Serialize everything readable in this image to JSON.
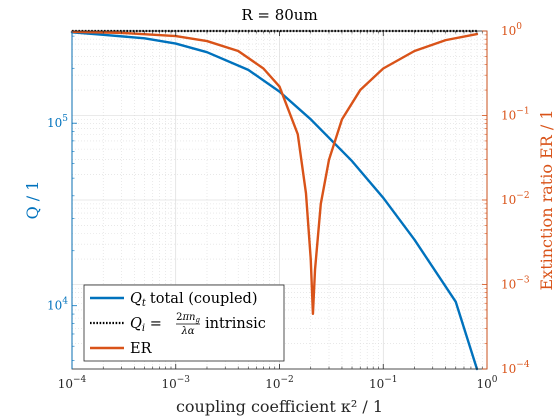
{
  "chart_data": {
    "type": "line",
    "title": "R = 80um",
    "xlabel": "coupling coefficient κ² / 1",
    "ylabel_left": "Q / 1",
    "ylabel_right": "Extinction ratio ER / 1",
    "x_scale": "log",
    "y_left_scale": "log",
    "y_right_scale": "log",
    "xlim": [
      0.0001,
      1
    ],
    "ylim_left": [
      4500,
      320000
    ],
    "ylim_right": [
      0.0001,
      1
    ],
    "x_ticks": [
      {
        "value": 0.0001,
        "base": "10",
        "exp": "−4"
      },
      {
        "value": 0.001,
        "base": "10",
        "exp": "−3"
      },
      {
        "value": 0.01,
        "base": "10",
        "exp": "−2"
      },
      {
        "value": 0.1,
        "base": "10",
        "exp": "−1"
      },
      {
        "value": 1,
        "base": "10",
        "exp": "0"
      }
    ],
    "y_left_ticks": [
      {
        "value": 10000,
        "base": "10",
        "exp": "4"
      },
      {
        "value": 100000,
        "base": "10",
        "exp": "5"
      }
    ],
    "y_right_ticks": [
      {
        "value": 0.0001,
        "base": "10",
        "exp": "−4"
      },
      {
        "value": 0.001,
        "base": "10",
        "exp": "−3"
      },
      {
        "value": 0.01,
        "base": "10",
        "exp": "−2"
      },
      {
        "value": 0.1,
        "base": "10",
        "exp": "−1"
      },
      {
        "value": 1,
        "base": "10",
        "exp": "0"
      }
    ],
    "grid": true,
    "legend_position": "bottom-left",
    "colors": {
      "left_axis": "#0072BD",
      "right_axis": "#D95319",
      "axes": "#262626"
    },
    "series": [
      {
        "name": "Q_t total (coupled)",
        "legend_text": "total (coupled)",
        "axis": "left",
        "color": "#0072BD",
        "style": "solid",
        "x": [
          0.0001,
          0.0002,
          0.0005,
          0.001,
          0.002,
          0.005,
          0.01,
          0.02,
          0.05,
          0.1,
          0.2,
          0.5,
          0.8
        ],
        "y": [
          315000,
          305000,
          292000,
          273000,
          245000,
          196000,
          149000,
          105000,
          62000,
          39000,
          23000,
          10500,
          4500
        ]
      },
      {
        "name": "Q_i intrinsic",
        "legend_text": "intrinsic",
        "axis": "left",
        "color": "#000000",
        "style": "dotted",
        "x": [
          0.0001,
          0.8
        ],
        "y": [
          320000,
          320000
        ]
      },
      {
        "name": "ER",
        "legend_text": "ER",
        "axis": "right",
        "color": "#D95319",
        "style": "solid",
        "x": [
          0.0001,
          0.0003,
          0.001,
          0.002,
          0.004,
          0.007,
          0.01,
          0.015,
          0.018,
          0.02,
          0.021,
          0.022,
          0.025,
          0.03,
          0.04,
          0.06,
          0.1,
          0.2,
          0.4,
          0.8
        ],
        "y": [
          0.98,
          0.95,
          0.87,
          0.76,
          0.58,
          0.36,
          0.22,
          0.06,
          0.012,
          0.002,
          0.00045,
          0.0015,
          0.009,
          0.03,
          0.09,
          0.2,
          0.36,
          0.58,
          0.78,
          0.92
        ]
      }
    ]
  }
}
